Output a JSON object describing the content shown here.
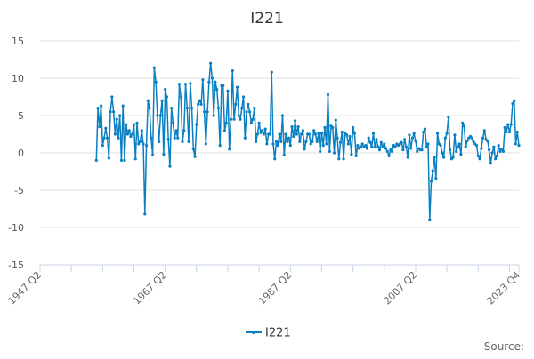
{
  "chart_data": {
    "type": "line",
    "title": "I221",
    "xlabel": "",
    "ylabel": "",
    "x_range": [
      "1947 Q2",
      "2023 Q4"
    ],
    "x_tick_labels": [
      "1947 Q2",
      "1967 Q2",
      "1987 Q2",
      "2007 Q2",
      "2023 Q4"
    ],
    "y_ticks": [
      15,
      10,
      5,
      0,
      -5,
      -10,
      -15
    ],
    "ylim": [
      -15,
      15
    ],
    "grid": true,
    "legend_position": "bottom",
    "series": [
      {
        "name": "I221",
        "color": "#0a7fc1",
        "values": [
          -1,
          6,
          3.5,
          6.3,
          1,
          2,
          3.3,
          2,
          -0.7,
          5.5,
          7.5,
          5.5,
          2.5,
          4.5,
          2,
          5,
          -1,
          6.3,
          -1,
          3.8,
          2.5,
          3,
          2.2,
          2.5,
          3.8,
          -0.8,
          4,
          1.2,
          1.5,
          3,
          1.2,
          -8.2,
          1,
          7,
          6,
          2,
          -0.3,
          11.4,
          9.5,
          5,
          1.5,
          5,
          7,
          -0.2,
          8.5,
          7.5,
          1.8,
          -1.8,
          6,
          4,
          2,
          3,
          2,
          9.2,
          7.5,
          1.5,
          3,
          9.2,
          6,
          1.5,
          9.3,
          6,
          0.5,
          -0.5,
          3.8,
          6.5,
          7,
          6.5,
          9.8,
          5.5,
          1.2,
          5.5,
          9.5,
          12,
          10,
          5,
          9.5,
          8.5,
          6,
          1,
          9,
          9,
          3,
          4,
          8.3,
          0.5,
          4.5,
          11,
          4.5,
          6.5,
          8.8,
          5,
          4.5,
          6,
          7.5,
          2,
          5.5,
          6.5,
          5.5,
          4,
          4.5,
          6,
          1.5,
          2.5,
          4,
          2.7,
          3,
          2.5,
          3.2,
          1.2,
          2.5,
          2.5,
          10.8,
          1.2,
          -0.8,
          1.5,
          1,
          2.5,
          1.5,
          5,
          -0.3,
          2.5,
          1.5,
          2,
          1,
          3.5,
          2.2,
          4.3,
          2.5,
          3.5,
          1.5,
          2.5,
          3,
          0.5,
          1.5,
          2.5,
          2.5,
          1.2,
          1.5,
          3,
          2.5,
          1.5,
          2.6,
          0.2,
          2.6,
          1.0,
          3.4,
          1.2,
          7.8,
          0.2,
          3.6,
          3.4,
          0,
          4.4,
          2,
          -0.8,
          1.4,
          2.8,
          -0.8,
          2.6,
          2.4,
          1.2,
          2.2,
          -0.2,
          3.4,
          2.6,
          -0.4,
          1,
          0.6,
          0.8,
          1.2,
          0.8,
          1.0,
          0.6,
          2,
          1.4,
          0.8,
          2.6,
          0.8,
          1.8,
          0.8,
          0.4,
          1.4,
          0.8,
          1.2,
          0.6,
          0.2,
          -0.4,
          0.4,
          0.2,
          1,
          0.8,
          1.2,
          1,
          1.2,
          1.4,
          0.4,
          1.8,
          0.8,
          -0.6,
          2.4,
          0.6,
          2,
          2.6,
          1.6,
          0.2,
          0.6,
          0.4,
          0.4,
          2.8,
          3.2,
          0.8,
          1.2,
          -9,
          -3.8,
          -2.4,
          -0.6,
          -3.4,
          2.6,
          1.2,
          1,
          0,
          -0.6,
          2,
          2.6,
          4.8,
          0.4,
          -0.8,
          -0.6,
          2.4,
          0.2,
          0.8,
          1.2,
          -0.2,
          4,
          3.6,
          0.8,
          1.6,
          2,
          2.2,
          2,
          1.5,
          1.2,
          1,
          -0.4,
          -0.8,
          0.6,
          2,
          3,
          1.8,
          1.6,
          0.4,
          -1.4,
          0,
          0.8,
          -0.8,
          -0.4,
          1,
          0.2,
          0.5,
          0.2,
          3.4,
          2.8,
          3.8,
          2.8,
          3.8,
          6.6,
          7,
          1.2,
          2.8,
          1
        ]
      }
    ],
    "source_label": "Source:"
  }
}
